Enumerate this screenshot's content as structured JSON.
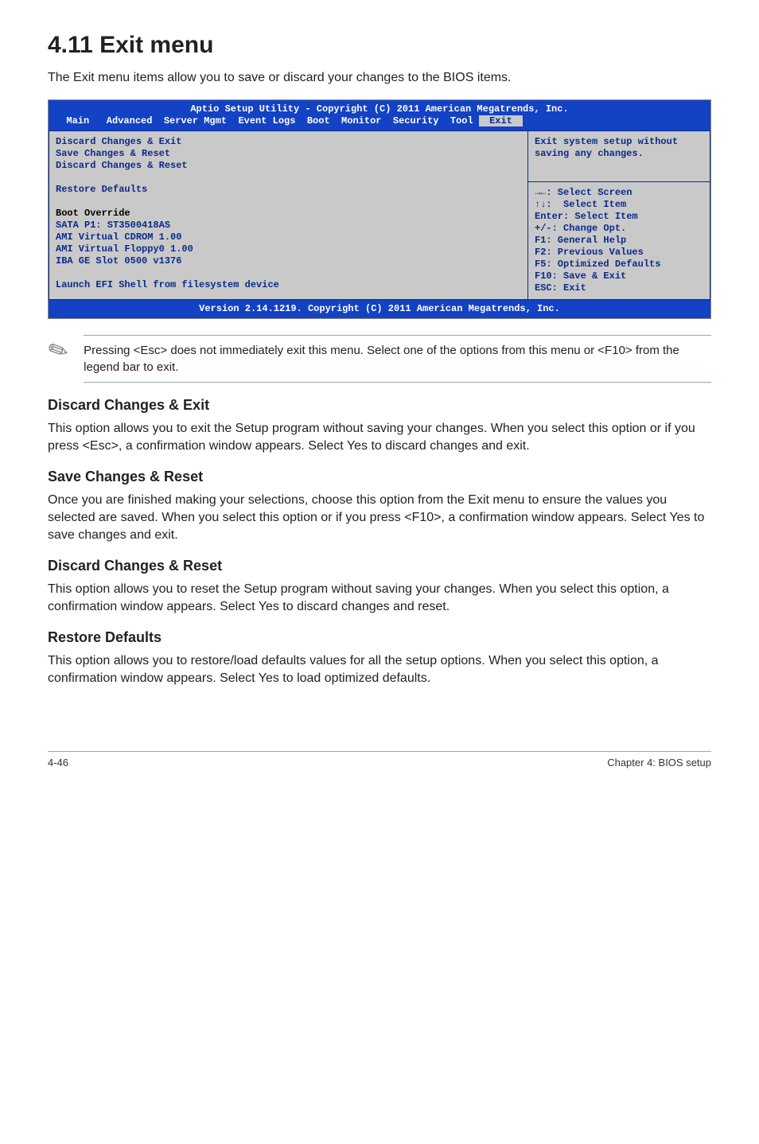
{
  "page": {
    "title": "4.11   Exit menu",
    "intro": "The Exit menu items allow you to save or discard your changes to the BIOS items.",
    "footer_left": "4-46",
    "footer_right": "Chapter 4: BIOS setup"
  },
  "bios": {
    "header_title": "Aptio Setup Utility - Copyright (C) 2011 American Megatrends, Inc.",
    "tabs": {
      "prefix": "  Main   Advanced  Server Mgmt  Event Logs  Boot  Monitor  Security  Tool ",
      "active": " Exit "
    },
    "left": {
      "l1": "Discard Changes & Exit",
      "l2": "Save Changes & Reset",
      "l3": "Discard Changes & Reset",
      "l4": "Restore Defaults",
      "override_hdr": "Boot Override",
      "o1": "SATA P1: ST3500418AS",
      "o2": "AMI Virtual CDROM 1.00",
      "o3": "AMI Virtual Floppy0 1.00",
      "o4": "IBA GE Slot 0500 v1376",
      "launch": "Launch EFI Shell from filesystem device"
    },
    "right_top": {
      "d1": "Exit system setup without",
      "d2": "saving any changes."
    },
    "right_bottom": {
      "h1": "→←: Select Screen",
      "h2": "↑↓:  Select Item",
      "h3": "Enter: Select Item",
      "h4": "+/-: Change Opt.",
      "h5": "F1: General Help",
      "h6": "F2: Previous Values",
      "h7": "F5: Optimized Defaults",
      "h8": "F10: Save & Exit",
      "h9": "ESC: Exit"
    },
    "footer": "Version 2.14.1219. Copyright (C) 2011 American Megatrends, Inc."
  },
  "note": {
    "text": "Pressing <Esc> does not immediately exit this menu. Select one of the options from this menu or <F10> from the legend bar to exit."
  },
  "sections": [
    {
      "heading": "Discard Changes & Exit",
      "body": "This option allows you to exit the Setup program without saving your changes. When you select this option or if you press <Esc>, a confirmation window appears. Select Yes to discard changes and exit."
    },
    {
      "heading": "Save Changes & Reset",
      "body": "Once you are finished making your selections, choose this option from the Exit menu to ensure the values you selected are saved. When you select this option or if you press <F10>, a confirmation window appears. Select Yes to save changes and exit."
    },
    {
      "heading": "Discard Changes & Reset",
      "body": "This option allows you to reset the Setup program without saving your changes. When you select this option, a confirmation window appears. Select Yes to discard changes and reset."
    },
    {
      "heading": "Restore Defaults",
      "body": "This option allows you to restore/load defaults values for all the setup options. When you select this option, a confirmation window appears. Select Yes to load optimized defaults."
    }
  ]
}
